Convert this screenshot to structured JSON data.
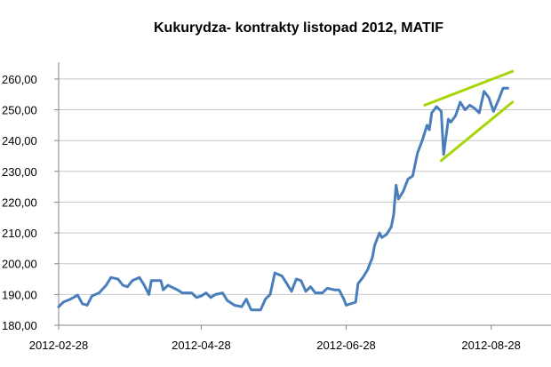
{
  "chart_data": {
    "type": "line",
    "title": "Kukurydza- kontrakty listopad 2012, MATIF",
    "xlabel": "",
    "ylabel": "",
    "ylim": [
      180,
      262
    ],
    "yticks": [
      "180,00",
      "190,00",
      "200,00",
      "210,00",
      "220,00",
      "230,00",
      "240,00",
      "250,00",
      "260,00"
    ],
    "xticks": [
      {
        "date": "2012-02-28",
        "label": "2012-02-28"
      },
      {
        "date": "2012-04-28",
        "label": "2012-04-28"
      },
      {
        "date": "2012-06-28",
        "label": "2012-06-28"
      },
      {
        "date": "2012-08-28",
        "label": "2012-08-28"
      }
    ],
    "xlim": [
      "2012-02-28",
      "2012-09-04"
    ],
    "grid": true,
    "series": [
      {
        "color": "#4a7ebb",
        "points": [
          [
            "2012-02-28",
            186.0
          ],
          [
            "2012-03-01",
            187.5
          ],
          [
            "2012-03-04",
            188.5
          ],
          [
            "2012-03-07",
            189.8
          ],
          [
            "2012-03-09",
            187.0
          ],
          [
            "2012-03-11",
            186.5
          ],
          [
            "2012-03-13",
            189.5
          ],
          [
            "2012-03-16",
            190.5
          ],
          [
            "2012-03-19",
            193.0
          ],
          [
            "2012-03-21",
            195.5
          ],
          [
            "2012-03-24",
            195.0
          ],
          [
            "2012-03-26",
            193.0
          ],
          [
            "2012-03-28",
            192.5
          ],
          [
            "2012-03-30",
            194.5
          ],
          [
            "2012-04-02",
            195.5
          ],
          [
            "2012-04-04",
            193.0
          ],
          [
            "2012-04-06",
            190.0
          ],
          [
            "2012-04-07",
            194.5
          ],
          [
            "2012-04-11",
            194.5
          ],
          [
            "2012-04-12",
            191.5
          ],
          [
            "2012-04-14",
            193.0
          ],
          [
            "2012-04-18",
            191.5
          ],
          [
            "2012-04-20",
            190.5
          ],
          [
            "2012-04-24",
            190.5
          ],
          [
            "2012-04-26",
            189.0
          ],
          [
            "2012-04-28",
            189.5
          ],
          [
            "2012-04-30",
            190.5
          ],
          [
            "2012-05-02",
            189.0
          ],
          [
            "2012-05-04",
            190.0
          ],
          [
            "2012-05-07",
            190.5
          ],
          [
            "2012-05-09",
            188.0
          ],
          [
            "2012-05-12",
            186.5
          ],
          [
            "2012-05-15",
            186.0
          ],
          [
            "2012-05-17",
            188.5
          ],
          [
            "2012-05-19",
            185.0
          ],
          [
            "2012-05-23",
            185.0
          ],
          [
            "2012-05-25",
            188.5
          ],
          [
            "2012-05-27",
            190.0
          ],
          [
            "2012-05-29",
            197.0
          ],
          [
            "2012-06-01",
            196.0
          ],
          [
            "2012-06-03",
            193.5
          ],
          [
            "2012-06-05",
            191.0
          ],
          [
            "2012-06-07",
            195.0
          ],
          [
            "2012-06-09",
            194.5
          ],
          [
            "2012-06-11",
            191.0
          ],
          [
            "2012-06-13",
            192.5
          ],
          [
            "2012-06-15",
            190.5
          ],
          [
            "2012-06-18",
            190.5
          ],
          [
            "2012-06-20",
            192.0
          ],
          [
            "2012-06-23",
            191.5
          ],
          [
            "2012-06-25",
            191.5
          ],
          [
            "2012-06-26",
            190.0
          ],
          [
            "2012-06-27",
            188.5
          ],
          [
            "2012-06-28",
            186.5
          ],
          [
            "2012-07-02",
            187.5
          ],
          [
            "2012-07-03",
            193.5
          ],
          [
            "2012-07-05",
            195.5
          ],
          [
            "2012-07-07",
            198.0
          ],
          [
            "2012-07-09",
            202.0
          ],
          [
            "2012-07-10",
            206.0
          ],
          [
            "2012-07-12",
            210.0
          ],
          [
            "2012-07-13",
            208.5
          ],
          [
            "2012-07-15",
            209.5
          ],
          [
            "2012-07-17",
            212.0
          ],
          [
            "2012-07-18",
            216.0
          ],
          [
            "2012-07-19",
            225.5
          ],
          [
            "2012-07-20",
            221.0
          ],
          [
            "2012-07-22",
            223.5
          ],
          [
            "2012-07-24",
            227.5
          ],
          [
            "2012-07-26",
            228.5
          ],
          [
            "2012-07-28",
            236.0
          ],
          [
            "2012-07-30",
            240.0
          ],
          [
            "2012-08-01",
            245.0
          ],
          [
            "2012-08-02",
            243.5
          ],
          [
            "2012-08-03",
            249.0
          ],
          [
            "2012-08-05",
            251.0
          ],
          [
            "2012-08-07",
            249.5
          ],
          [
            "2012-08-08",
            235.5
          ],
          [
            "2012-08-10",
            247.0
          ],
          [
            "2012-08-11",
            246.0
          ],
          [
            "2012-08-13",
            248.0
          ],
          [
            "2012-08-15",
            252.5
          ],
          [
            "2012-08-17",
            250.0
          ],
          [
            "2012-08-19",
            251.5
          ],
          [
            "2012-08-21",
            250.5
          ],
          [
            "2012-08-23",
            249.0
          ],
          [
            "2012-08-25",
            256.0
          ],
          [
            "2012-08-27",
            254.0
          ],
          [
            "2012-08-29",
            249.5
          ],
          [
            "2012-08-31",
            253.0
          ],
          [
            "2012-09-02",
            257.0
          ],
          [
            "2012-09-04",
            257.0
          ]
        ]
      }
    ],
    "trend_lines": [
      {
        "color": "#a6d608",
        "from": [
          "2012-07-31",
          251.5
        ],
        "to": [
          "2012-09-06",
          262.5
        ]
      },
      {
        "color": "#a6d608",
        "from": [
          "2012-08-07",
          233.5
        ],
        "to": [
          "2012-09-06",
          252.5
        ]
      }
    ]
  }
}
